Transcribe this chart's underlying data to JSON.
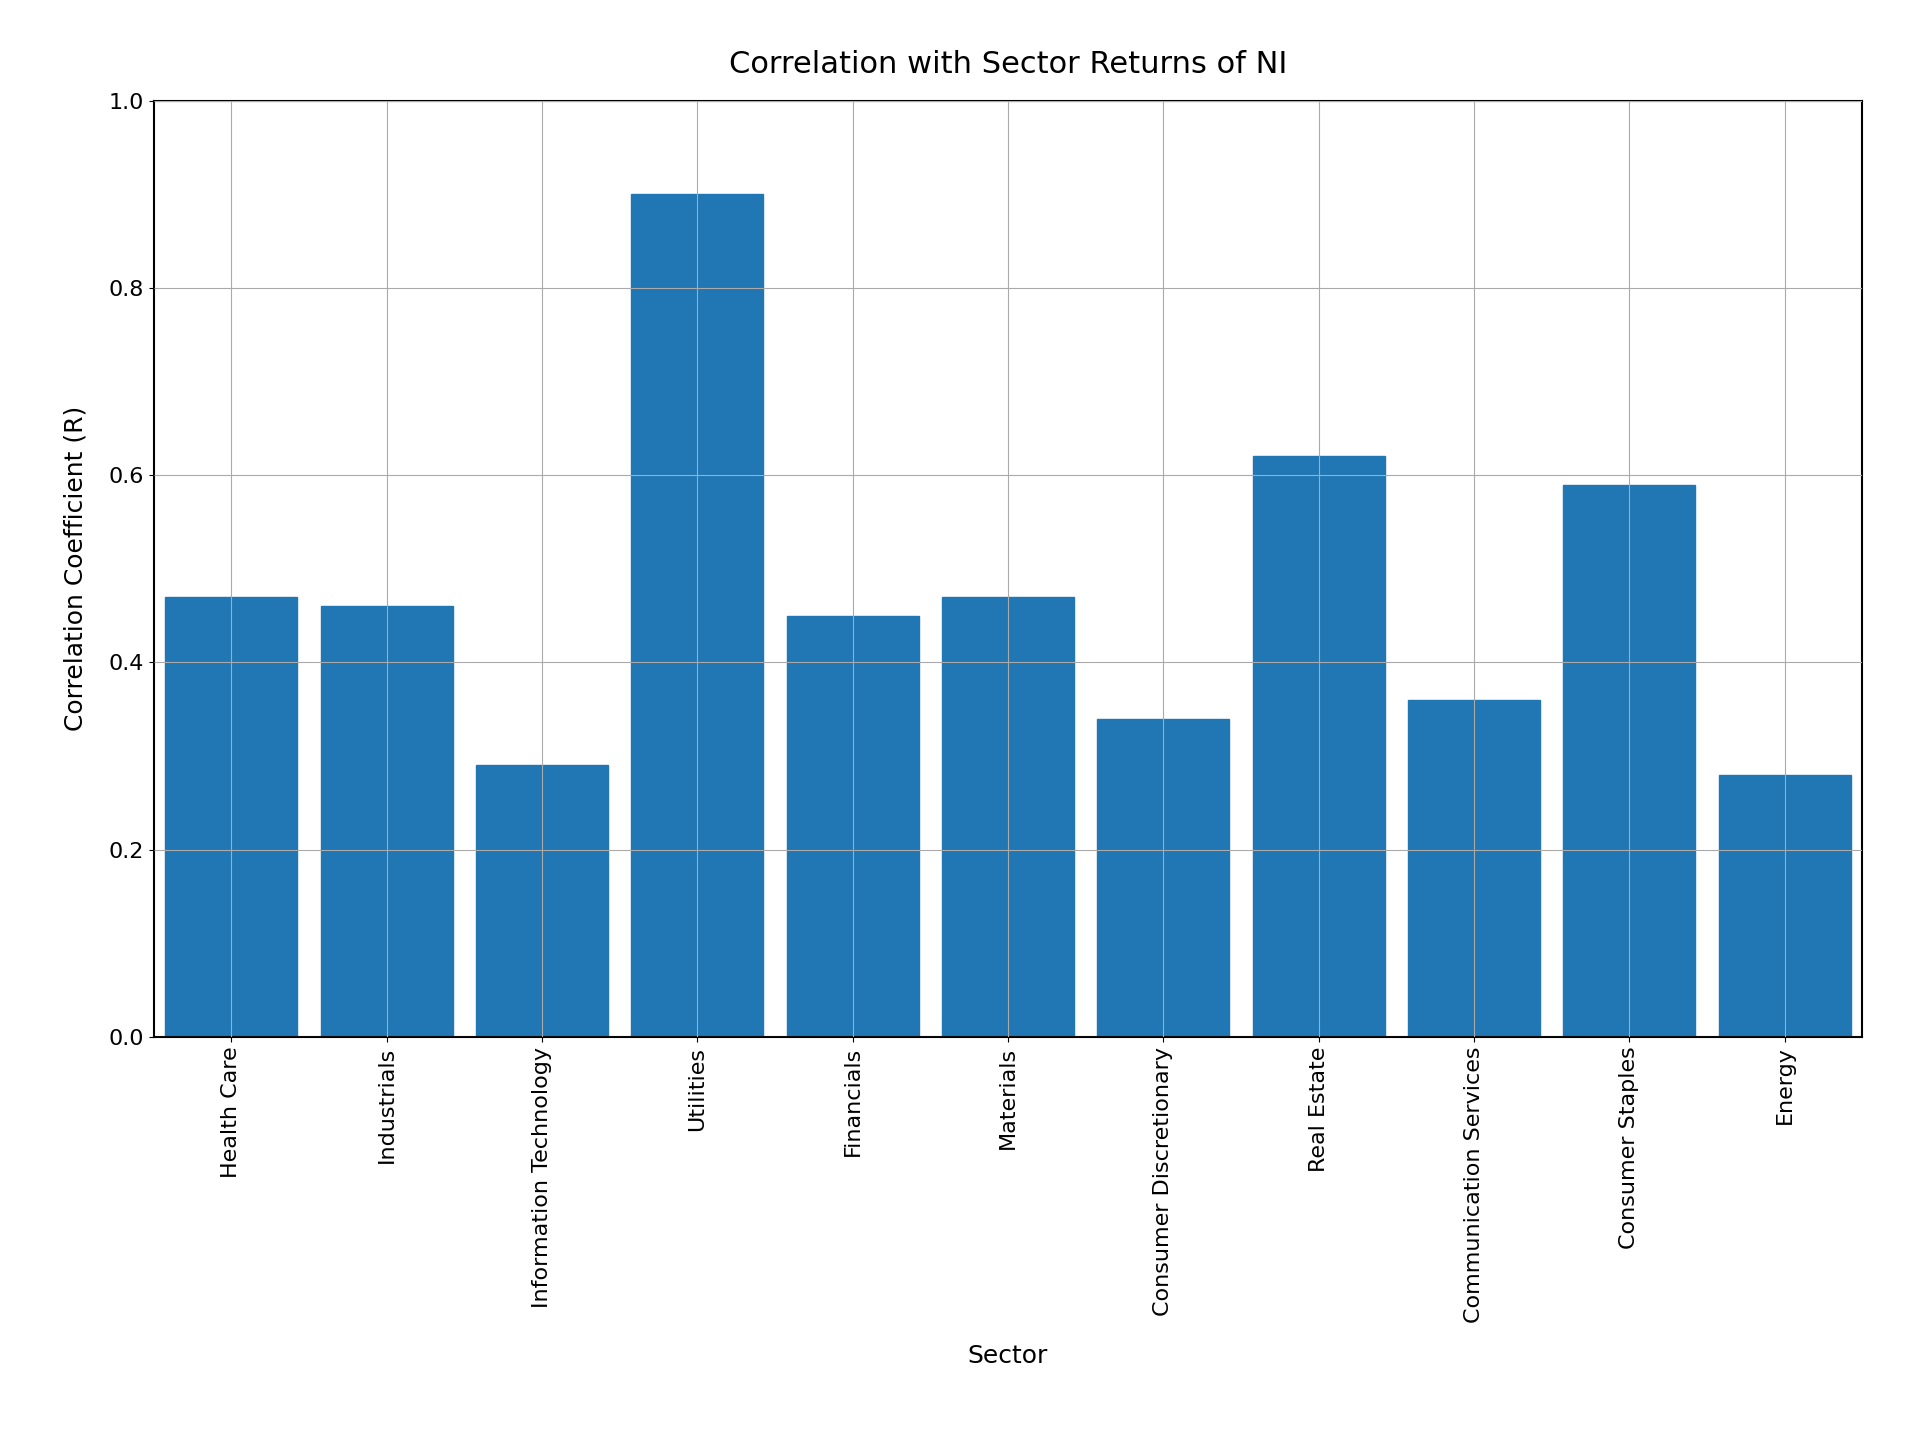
{
  "title": "Correlation with Sector Returns of NI",
  "xlabel": "Sector",
  "ylabel": "Correlation Coefficient (R)",
  "categories": [
    "Health Care",
    "Industrials",
    "Information Technology",
    "Utilities",
    "Financials",
    "Materials",
    "Consumer Discretionary",
    "Real Estate",
    "Communication Services",
    "Consumer Staples",
    "Energy"
  ],
  "values": [
    0.47,
    0.46,
    0.29,
    0.9,
    0.45,
    0.47,
    0.34,
    0.62,
    0.36,
    0.59,
    0.28
  ],
  "bar_color": "#2077b4",
  "ylim": [
    0.0,
    1.0
  ],
  "yticks": [
    0.0,
    0.2,
    0.4,
    0.6,
    0.8,
    1.0
  ],
  "title_fontsize": 22,
  "label_fontsize": 18,
  "tick_fontsize": 16,
  "bar_width": 0.85,
  "grid": true,
  "background_color": "#ffffff"
}
